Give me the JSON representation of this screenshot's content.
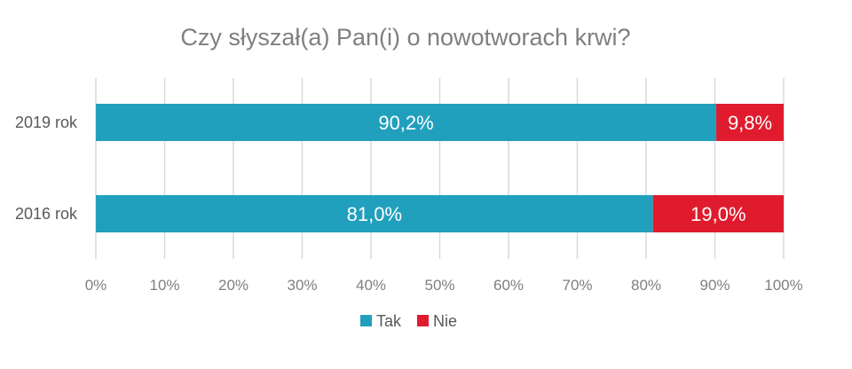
{
  "chart_data": {
    "type": "bar",
    "orientation": "horizontal",
    "stacked": true,
    "title": "Czy słyszał(a) Pan(i) o nowotworach krwi?",
    "categories": [
      "2019 rok",
      "2016 rok"
    ],
    "series": [
      {
        "name": "Tak",
        "values": [
          90.2,
          81.0
        ],
        "labels": [
          "90,2%",
          "81,0%"
        ],
        "color": "#21a0bd"
      },
      {
        "name": "Nie",
        "values": [
          9.8,
          19.0
        ],
        "labels": [
          "9,8%",
          "19,0%"
        ],
        "color": "#e01b2d"
      }
    ],
    "xlim": [
      0,
      100
    ],
    "x_ticks": [
      "0%",
      "10%",
      "20%",
      "30%",
      "40%",
      "50%",
      "60%",
      "70%",
      "80%",
      "90%",
      "100%"
    ],
    "grid": true,
    "legend_position": "bottom"
  }
}
